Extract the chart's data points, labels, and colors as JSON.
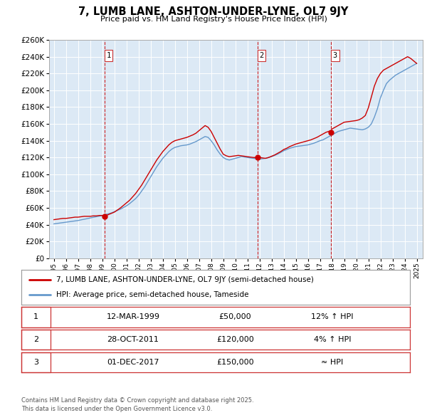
{
  "title": "7, LUMB LANE, ASHTON-UNDER-LYNE, OL7 9JY",
  "subtitle": "Price paid vs. HM Land Registry's House Price Index (HPI)",
  "bg_color": "#dce9f5",
  "grid_color": "#ffffff",
  "ylim": [
    0,
    260000
  ],
  "yticks": [
    0,
    20000,
    40000,
    60000,
    80000,
    100000,
    120000,
    140000,
    160000,
    180000,
    200000,
    220000,
    240000,
    260000
  ],
  "xlim_start": 1994.6,
  "xlim_end": 2025.5,
  "sale_dates": [
    1999.19,
    2011.82,
    2017.92
  ],
  "sale_prices": [
    50000,
    120000,
    150000
  ],
  "sale_labels": [
    "1",
    "2",
    "3"
  ],
  "vline_color": "#cc0000",
  "red_line_color": "#cc0000",
  "blue_line_color": "#6699cc",
  "legend_label_red": "7, LUMB LANE, ASHTON-UNDER-LYNE, OL7 9JY (semi-detached house)",
  "legend_label_blue": "HPI: Average price, semi-detached house, Tameside",
  "table_rows": [
    {
      "num": "1",
      "date": "12-MAR-1999",
      "price": "£50,000",
      "hpi": "12% ↑ HPI"
    },
    {
      "num": "2",
      "date": "28-OCT-2011",
      "price": "£120,000",
      "hpi": "4% ↑ HPI"
    },
    {
      "num": "3",
      "date": "01-DEC-2017",
      "price": "£150,000",
      "hpi": "≈ HPI"
    }
  ],
  "footer": "Contains HM Land Registry data © Crown copyright and database right 2025.\nThis data is licensed under the Open Government Licence v3.0.",
  "hpi_years": [
    1995,
    1995.25,
    1995.5,
    1995.75,
    1996,
    1996.25,
    1996.5,
    1996.75,
    1997,
    1997.25,
    1997.5,
    1997.75,
    1998,
    1998.25,
    1998.5,
    1998.75,
    1999,
    1999.25,
    1999.5,
    1999.75,
    2000,
    2000.25,
    2000.5,
    2000.75,
    2001,
    2001.25,
    2001.5,
    2001.75,
    2002,
    2002.25,
    2002.5,
    2002.75,
    2003,
    2003.25,
    2003.5,
    2003.75,
    2004,
    2004.25,
    2004.5,
    2004.75,
    2005,
    2005.25,
    2005.5,
    2005.75,
    2006,
    2006.25,
    2006.5,
    2006.75,
    2007,
    2007.25,
    2007.5,
    2007.75,
    2008,
    2008.25,
    2008.5,
    2008.75,
    2009,
    2009.25,
    2009.5,
    2009.75,
    2010,
    2010.25,
    2010.5,
    2010.75,
    2011,
    2011.25,
    2011.5,
    2011.75,
    2012,
    2012.25,
    2012.5,
    2012.75,
    2013,
    2013.25,
    2013.5,
    2013.75,
    2014,
    2014.25,
    2014.5,
    2014.75,
    2015,
    2015.25,
    2015.5,
    2015.75,
    2016,
    2016.25,
    2016.5,
    2016.75,
    2017,
    2017.25,
    2017.5,
    2017.75,
    2018,
    2018.25,
    2018.5,
    2018.75,
    2019,
    2019.25,
    2019.5,
    2019.75,
    2020,
    2020.25,
    2020.5,
    2020.75,
    2021,
    2021.25,
    2021.5,
    2021.75,
    2022,
    2022.25,
    2022.5,
    2022.75,
    2023,
    2023.25,
    2023.5,
    2023.75,
    2024,
    2024.25,
    2024.5,
    2024.75,
    2025
  ],
  "hpi_values": [
    41000,
    41500,
    42000,
    42500,
    43000,
    43500,
    44000,
    44500,
    45000,
    45800,
    46500,
    47200,
    48000,
    48800,
    49500,
    50200,
    51000,
    52000,
    53000,
    54000,
    55500,
    57000,
    58500,
    60500,
    62500,
    65000,
    68000,
    71000,
    75000,
    80000,
    85000,
    91000,
    97000,
    103000,
    109000,
    114000,
    119000,
    123000,
    127000,
    130000,
    132000,
    133000,
    134000,
    134500,
    135000,
    136000,
    137500,
    139000,
    141000,
    143000,
    145000,
    144000,
    140000,
    135000,
    129000,
    124000,
    120000,
    118000,
    117000,
    118000,
    119000,
    120000,
    121000,
    120500,
    120000,
    119500,
    119000,
    118500,
    118000,
    118500,
    119000,
    120000,
    121000,
    122500,
    124000,
    126000,
    128000,
    129500,
    131000,
    132000,
    133000,
    133500,
    134000,
    134500,
    135000,
    136000,
    137000,
    138500,
    140000,
    141000,
    143000,
    145000,
    147000,
    149000,
    151000,
    152000,
    153000,
    154000,
    155000,
    154500,
    154000,
    153500,
    153000,
    154000,
    156000,
    160000,
    168000,
    178000,
    191000,
    200000,
    208000,
    212000,
    215000,
    218000,
    220000,
    222000,
    224000,
    226000,
    228000,
    230000,
    232000
  ],
  "red_years": [
    1995,
    1995.25,
    1995.5,
    1995.75,
    1996,
    1996.25,
    1996.5,
    1996.75,
    1997,
    1997.25,
    1997.5,
    1997.75,
    1998,
    1998.25,
    1998.5,
    1998.75,
    1999,
    1999.19,
    1999.5,
    1999.75,
    2000,
    2000.25,
    2000.5,
    2000.75,
    2001,
    2001.25,
    2001.5,
    2001.75,
    2002,
    2002.25,
    2002.5,
    2002.75,
    2003,
    2003.25,
    2003.5,
    2003.75,
    2004,
    2004.25,
    2004.5,
    2004.75,
    2005,
    2005.25,
    2005.5,
    2005.75,
    2006,
    2006.25,
    2006.5,
    2006.75,
    2007,
    2007.25,
    2007.5,
    2007.75,
    2008,
    2008.25,
    2008.5,
    2008.75,
    2009,
    2009.25,
    2009.5,
    2009.75,
    2010,
    2010.25,
    2010.5,
    2010.75,
    2011,
    2011.25,
    2011.5,
    2011.82,
    2012,
    2012.25,
    2012.5,
    2012.75,
    2013,
    2013.25,
    2013.5,
    2013.75,
    2014,
    2014.25,
    2014.5,
    2014.75,
    2015,
    2015.25,
    2015.5,
    2015.75,
    2016,
    2016.25,
    2016.5,
    2016.75,
    2017,
    2017.25,
    2017.5,
    2017.92,
    2018,
    2018.25,
    2018.5,
    2018.75,
    2019,
    2019.25,
    2019.5,
    2019.75,
    2020,
    2020.25,
    2020.5,
    2020.75,
    2021,
    2021.25,
    2021.5,
    2021.75,
    2022,
    2022.25,
    2022.5,
    2022.75,
    2023,
    2023.25,
    2023.5,
    2023.75,
    2024,
    2024.25,
    2024.5,
    2024.75,
    2025
  ],
  "red_values": [
    46000,
    46500,
    47000,
    47500,
    47500,
    48000,
    48500,
    49000,
    49000,
    49500,
    50000,
    50000,
    50000,
    50500,
    50500,
    51000,
    51000,
    50000,
    52000,
    53500,
    55000,
    57500,
    60000,
    63000,
    66000,
    69000,
    73000,
    77000,
    82000,
    87000,
    93000,
    99000,
    105000,
    111000,
    117000,
    122000,
    127000,
    131000,
    135000,
    138000,
    140000,
    141000,
    142000,
    143000,
    144000,
    145500,
    147000,
    149000,
    152000,
    155000,
    158000,
    156000,
    151000,
    144000,
    137000,
    130000,
    124000,
    122000,
    121000,
    121500,
    122000,
    122500,
    122000,
    121500,
    121000,
    120500,
    120000,
    120000,
    120000,
    119500,
    119000,
    120000,
    121500,
    123000,
    125000,
    127000,
    129500,
    131000,
    133000,
    134500,
    136000,
    137000,
    138000,
    139000,
    140000,
    141000,
    142500,
    144000,
    146000,
    148000,
    150000,
    152000,
    154000,
    156000,
    158000,
    160000,
    162000,
    162500,
    163000,
    163500,
    164000,
    165000,
    167000,
    170000,
    179000,
    192000,
    205000,
    214000,
    220000,
    224000,
    226000,
    228000,
    230000,
    232000,
    234000,
    236000,
    238000,
    240000,
    238000,
    235000,
    232000
  ]
}
